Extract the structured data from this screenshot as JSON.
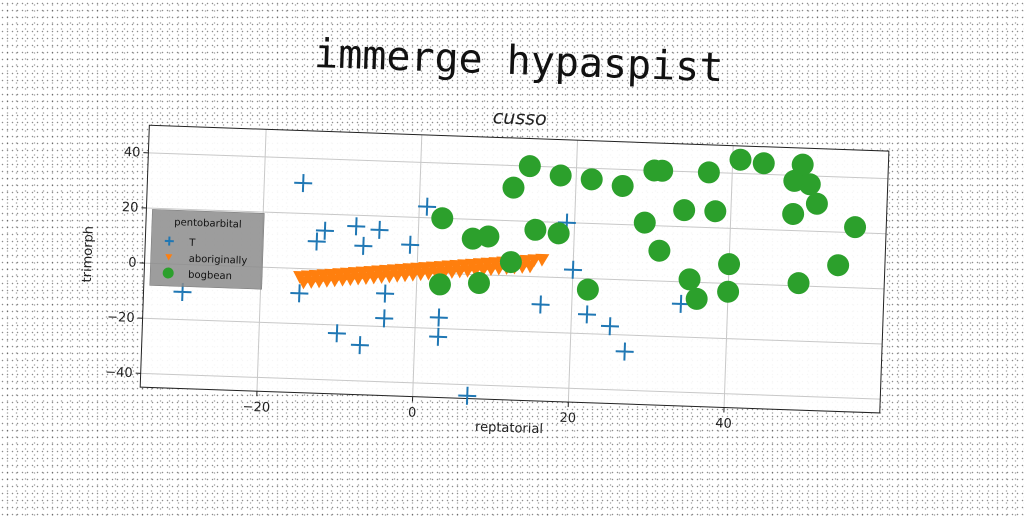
{
  "chart_data": {
    "type": "scatter",
    "suptitle": "immerge hypaspist",
    "title": "cusso",
    "xlabel": "reptatorial",
    "ylabel": "trimorph",
    "xlim": [
      -35,
      60
    ],
    "ylim": [
      -45,
      50
    ],
    "xticks": [
      -20,
      0,
      20,
      40
    ],
    "yticks": [
      -40,
      -20,
      0,
      20,
      40
    ],
    "grid": true,
    "legend": {
      "title": "pentobarbital",
      "placement": "center-left"
    },
    "series": [
      {
        "name": "T",
        "marker": "plus",
        "color": "#1f77b4",
        "points": [
          [
            -30,
            -10
          ],
          [
            -15,
            31
          ],
          [
            -15,
            -9
          ],
          [
            -12,
            14
          ],
          [
            -13,
            10
          ],
          [
            -8,
            16
          ],
          [
            -7,
            9
          ],
          [
            -5,
            15
          ],
          [
            -10,
            -23
          ],
          [
            -7,
            -27
          ],
          [
            -4,
            -8
          ],
          [
            -4,
            -17
          ],
          [
            -1,
            10
          ],
          [
            1,
            24
          ],
          [
            3,
            -16
          ],
          [
            3,
            -23
          ],
          [
            7,
            -44
          ],
          [
            16,
            -10
          ],
          [
            19,
            20
          ],
          [
            20,
            3
          ],
          [
            22,
            -13
          ],
          [
            25,
            -17
          ],
          [
            27,
            -26
          ],
          [
            34,
            -8
          ]
        ]
      },
      {
        "name": "aboriginally",
        "marker": "triangle",
        "color": "#ff7f0e",
        "points": [
          [
            -15.0,
            -3.0
          ],
          [
            -14.0,
            -2.7
          ],
          [
            -13.0,
            -2.4
          ],
          [
            -12.0,
            -2.1
          ],
          [
            -11.0,
            -1.8
          ],
          [
            -10.0,
            -1.5
          ],
          [
            -9.0,
            -1.2
          ],
          [
            -8.0,
            -0.9
          ],
          [
            -7.0,
            -0.6
          ],
          [
            -6.0,
            -0.3
          ],
          [
            -5.0,
            0.0
          ],
          [
            -4.0,
            0.3
          ],
          [
            -3.0,
            0.6
          ],
          [
            -2.0,
            0.9
          ],
          [
            -1.0,
            1.2
          ],
          [
            0.0,
            1.5
          ],
          [
            1.0,
            1.8
          ],
          [
            2.0,
            2.1
          ],
          [
            3.0,
            2.4
          ],
          [
            4.0,
            2.7
          ],
          [
            5.0,
            3.0
          ],
          [
            6.0,
            3.3
          ],
          [
            7.0,
            3.6
          ],
          [
            8.0,
            3.9
          ],
          [
            9.0,
            4.2
          ],
          [
            10.0,
            4.5
          ],
          [
            11.0,
            4.8
          ],
          [
            12.0,
            5.1
          ],
          [
            13.0,
            5.4
          ],
          [
            14.0,
            5.7
          ],
          [
            15.0,
            6.0
          ],
          [
            16.0,
            6.3
          ],
          [
            -14.5,
            -5.0
          ],
          [
            -13.5,
            -4.7
          ],
          [
            -12.5,
            -4.4
          ],
          [
            -11.5,
            -4.1
          ],
          [
            -10.5,
            -3.8
          ],
          [
            -9.5,
            -3.5
          ],
          [
            -8.5,
            -3.2
          ],
          [
            -7.5,
            -2.9
          ],
          [
            -6.5,
            -2.6
          ],
          [
            -5.5,
            -2.3
          ],
          [
            -4.5,
            -2.0
          ],
          [
            -3.5,
            -1.7
          ],
          [
            -2.5,
            -1.4
          ],
          [
            -1.5,
            -1.1
          ],
          [
            -0.5,
            -0.8
          ],
          [
            0.5,
            -0.5
          ],
          [
            1.5,
            -0.2
          ],
          [
            2.5,
            0.1
          ],
          [
            3.5,
            0.4
          ],
          [
            4.5,
            0.7
          ],
          [
            5.5,
            1.0
          ],
          [
            6.5,
            1.3
          ],
          [
            7.5,
            1.6
          ],
          [
            8.5,
            1.9
          ],
          [
            9.5,
            2.2
          ],
          [
            10.5,
            2.5
          ],
          [
            11.5,
            2.8
          ],
          [
            12.5,
            3.1
          ],
          [
            13.5,
            3.4
          ],
          [
            14.5,
            3.7
          ]
        ]
      },
      {
        "name": "bogbean",
        "marker": "circle",
        "color": "#2ca02c",
        "points": [
          [
            3,
            -4
          ],
          [
            3,
            20
          ],
          [
            7,
            13
          ],
          [
            8,
            -3
          ],
          [
            9,
            14
          ],
          [
            12,
            5
          ],
          [
            12,
            32
          ],
          [
            14,
            40
          ],
          [
            15,
            17
          ],
          [
            18,
            37
          ],
          [
            18,
            16
          ],
          [
            22,
            36
          ],
          [
            22,
            -4
          ],
          [
            26,
            34
          ],
          [
            29,
            21
          ],
          [
            30,
            40
          ],
          [
            31,
            40
          ],
          [
            31,
            11
          ],
          [
            34,
            26
          ],
          [
            35,
            1
          ],
          [
            36,
            -6
          ],
          [
            37,
            40
          ],
          [
            38,
            26
          ],
          [
            40,
            -3
          ],
          [
            40,
            7
          ],
          [
            41,
            45
          ],
          [
            44,
            44
          ],
          [
            48,
            26
          ],
          [
            48,
            38
          ],
          [
            49,
            1
          ],
          [
            49,
            44
          ],
          [
            50,
            37
          ],
          [
            51,
            30
          ],
          [
            54,
            8
          ],
          [
            56,
            22
          ]
        ]
      }
    ]
  }
}
